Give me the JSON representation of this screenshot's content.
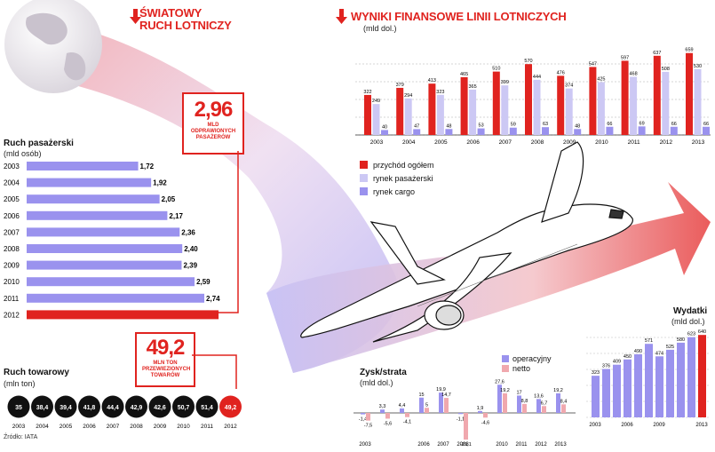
{
  "world_title": "ŚWIATOWY\nRUCH LOTNICZY",
  "fin_title": "WYNIKI FINANSOWE LINII LOTNICZYCH",
  "fin_unit": "(mld dol.)",
  "pass_callout": {
    "value": "2,96",
    "text": "MLD ODPRAWIONYCH PASAŻERÓW"
  },
  "cargo_callout": {
    "value": "49,2",
    "text": "MLN TON PRZEWIEZIONYCH TOWARÓW"
  },
  "source": "Źródło: IATA",
  "colors": {
    "red": "#e0231f",
    "lav": "#ccc8f4",
    "purple": "#9a92ee",
    "pink": "#f0a8ae",
    "black": "#111111"
  },
  "chart_data": [
    {
      "type": "bar",
      "title": "Ruch pasażerski",
      "ylabel": "(mld osób)",
      "categories": [
        "2003",
        "2004",
        "2005",
        "2006",
        "2007",
        "2008",
        "2009",
        "2010",
        "2011",
        "2012"
      ],
      "values": [
        1.72,
        1.92,
        2.05,
        2.17,
        2.36,
        2.4,
        2.39,
        2.59,
        2.74,
        2.96
      ],
      "value_labels": [
        "1,72",
        "1,92",
        "2,05",
        "2,17",
        "2,36",
        "2,40",
        "2,39",
        "2,59",
        "2,74",
        ""
      ]
    },
    {
      "type": "bar",
      "title": "Ruch towarowy",
      "ylabel": "(mln ton)",
      "categories": [
        "2003",
        "2004",
        "2005",
        "2006",
        "2007",
        "2008",
        "2009",
        "2010",
        "2011",
        "2012"
      ],
      "values": [
        35,
        38.4,
        39.4,
        41.8,
        44.4,
        42.9,
        42.6,
        50.7,
        51.4,
        49.2
      ],
      "value_labels": [
        "35",
        "38,4",
        "39,4",
        "41,8",
        "44,4",
        "42,9",
        "42,6",
        "50,7",
        "51,4",
        "49,2"
      ]
    },
    {
      "type": "bar",
      "title": "WYNIKI FINANSOWE LINII LOTNICZYCH",
      "ylabel": "(mld dol.)",
      "categories": [
        "2003",
        "2004",
        "2005",
        "2006",
        "2007",
        "2008",
        "2009",
        "2010",
        "2011",
        "2012",
        "2013"
      ],
      "series": [
        {
          "name": "przychód ogółem",
          "values": [
            322,
            379,
            413,
            465,
            510,
            570,
            476,
            547,
            597,
            637,
            659
          ]
        },
        {
          "name": "rynek pasażerski",
          "values": [
            249,
            294,
            323,
            365,
            399,
            444,
            374,
            425,
            468,
            508,
            530
          ]
        },
        {
          "name": "rynek cargo",
          "values": [
            40,
            47,
            48,
            53,
            59,
            63,
            48,
            66,
            69,
            66,
            66
          ]
        }
      ]
    },
    {
      "type": "bar",
      "title": "Zysk/strata",
      "ylabel": "(mld dol.)",
      "categories": [
        "2003",
        "2004",
        "2005",
        "2006",
        "2007",
        "2008",
        "2009",
        "2010",
        "2011",
        "2012",
        "2013"
      ],
      "series": [
        {
          "name": "operacyjny",
          "values": [
            -1.4,
            3.3,
            4.4,
            15,
            19.9,
            -1.1,
            1.9,
            27.6,
            17,
            13.6,
            19.2
          ],
          "labels": [
            "-1,4",
            "3,3",
            "4,4",
            "15",
            "19,9",
            "-1,1",
            "1,9",
            "27,6",
            "17",
            "13,6",
            "19,2"
          ]
        },
        {
          "name": "netto",
          "values": [
            -7.5,
            -5.6,
            -4.1,
            5,
            14.7,
            -26.1,
            -4.6,
            19.2,
            8.8,
            6.7,
            8.4
          ],
          "labels": [
            "-7,5",
            "-5,6",
            "-4,1",
            "5",
            "14,7",
            "-26,1",
            "-4,6",
            "19,2",
            "8,8",
            "6,7",
            "8,4"
          ]
        }
      ],
      "axis_labels": [
        "2003",
        "2006",
        "2007",
        "2008",
        "2010",
        "2011",
        "2012",
        "2013"
      ]
    },
    {
      "type": "bar",
      "title": "Wydatki",
      "ylabel": "(mld dol.)",
      "categories": [
        "2003",
        "2004",
        "2005",
        "2006",
        "2007",
        "2008",
        "2009",
        "2010",
        "2011",
        "2012",
        "2013"
      ],
      "values": [
        323,
        376,
        409,
        450,
        490,
        571,
        474,
        525,
        580,
        623,
        640
      ],
      "axis_labels": [
        "2003",
        "2006",
        "2009",
        "2013"
      ]
    }
  ]
}
